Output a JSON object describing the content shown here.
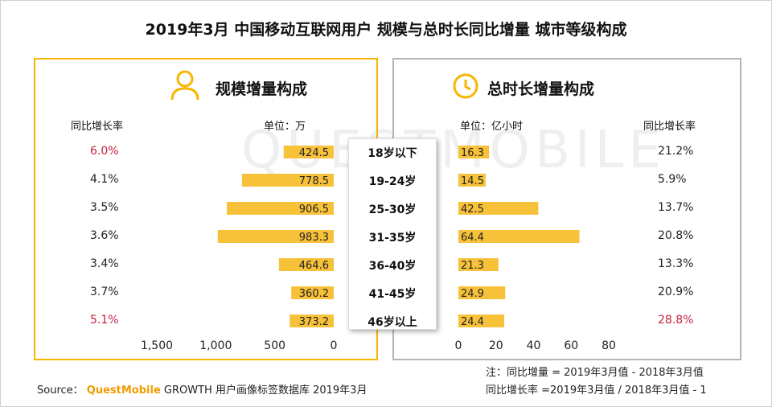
{
  "title": "2019年3月 中国移动互联网用户 规模与总时长同比增量 城市等级构成",
  "watermark": "QUESTMOBILE",
  "left_panel": {
    "heading": "规模增量构成",
    "rate_header": "同比增长率",
    "unit": "单位：万",
    "ticks": [
      "1,500",
      "1,000",
      "500",
      "0"
    ]
  },
  "right_panel": {
    "heading": "总时长增量构成",
    "rate_header": "同比增长率",
    "unit": "单位：亿小时",
    "ticks": [
      "0",
      "20",
      "40",
      "60",
      "80"
    ]
  },
  "footer": {
    "source_prefix": "Source：",
    "brand": "QuestMobile",
    "source_suffix": "GROWTH 用户画像标签数据库 2019年3月",
    "note1": "注：同比增量 = 2019年3月值 - 2018年3月值",
    "note2": "同比增长率 =2019年3月值 / 2018年3月值 - 1"
  },
  "colors": {
    "bar": "#f7c23a",
    "accent": "#f7b500",
    "highlight": "#c8203c",
    "panel_right_border": "#b5b5b5"
  },
  "chart_data": [
    {
      "type": "bar",
      "orientation": "horizontal",
      "title": "规模增量构成",
      "unit": "单位：万",
      "categories": [
        "18岁以下",
        "19-24岁",
        "25-30岁",
        "31-35岁",
        "36-40岁",
        "41-45岁",
        "46岁以上"
      ],
      "values": [
        424.5,
        778.5,
        906.5,
        983.3,
        464.6,
        360.2,
        373.2
      ],
      "value_labels": [
        "424.5",
        "778.5",
        "906.5",
        "983.3",
        "464.6",
        "360.2",
        "373.2"
      ],
      "growth_rate": [
        "6.0%",
        "4.1%",
        "3.5%",
        "3.6%",
        "3.4%",
        "3.7%",
        "5.1%"
      ],
      "highlight_index": [
        0,
        6
      ],
      "xlim": [
        1500,
        0
      ],
      "x_ticks": [
        1500,
        1000,
        500,
        0
      ]
    },
    {
      "type": "bar",
      "orientation": "horizontal",
      "title": "总时长增量构成",
      "unit": "单位：亿小时",
      "categories": [
        "18岁以下",
        "19-24岁",
        "25-30岁",
        "31-35岁",
        "36-40岁",
        "41-45岁",
        "46岁以上"
      ],
      "values": [
        16.3,
        14.5,
        42.5,
        64.4,
        21.3,
        24.9,
        24.4
      ],
      "value_labels": [
        "16.3",
        "14.5",
        "42.5",
        "64.4",
        "21.3",
        "24.9",
        "24.4"
      ],
      "growth_rate": [
        "21.2%",
        "5.9%",
        "13.7%",
        "20.8%",
        "13.3%",
        "20.9%",
        "28.8%"
      ],
      "highlight_index": [
        6
      ],
      "xlim": [
        0,
        80
      ],
      "x_ticks": [
        0,
        20,
        40,
        60,
        80
      ]
    }
  ]
}
